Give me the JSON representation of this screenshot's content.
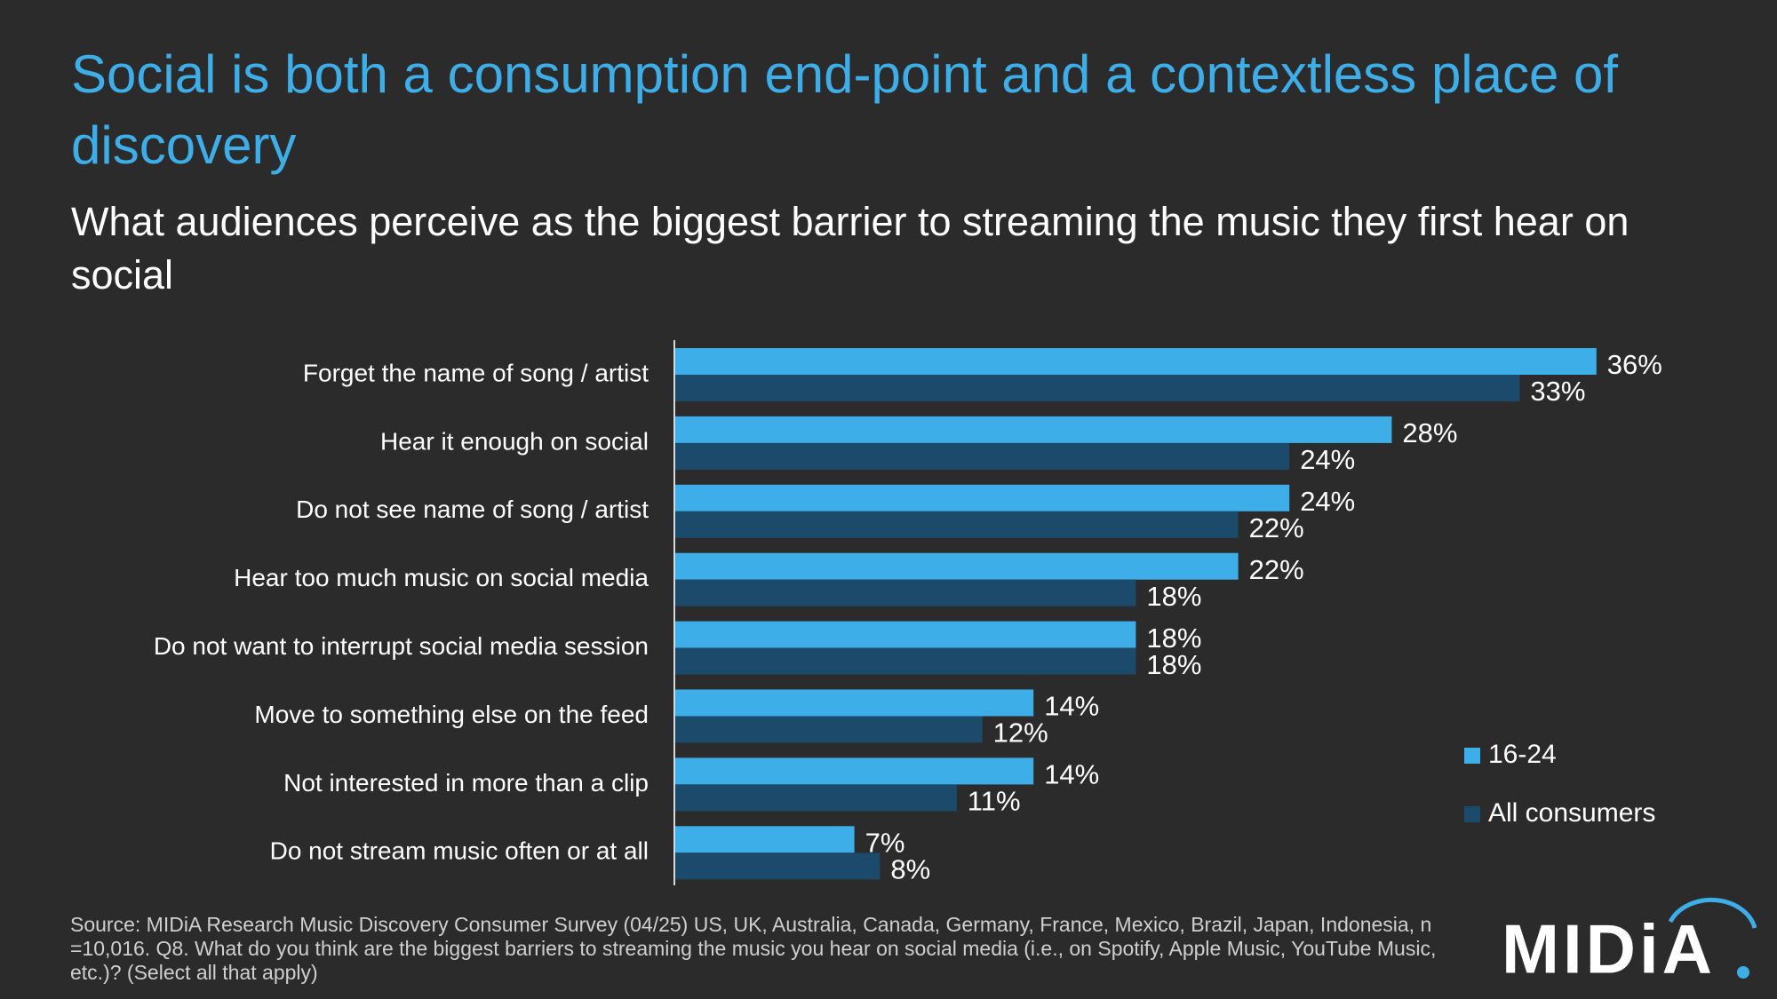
{
  "chart_data": {
    "type": "bar",
    "orientation": "horizontal",
    "title": "Social is both a consumption end-point and a contextless place of discovery",
    "subtitle": "What audiences perceive as the biggest barrier to streaming the music they first hear on social",
    "categories": [
      "Forget the name of song / artist",
      "Hear it enough on social",
      "Do not see name of song / artist",
      "Hear too much music on social media",
      "Do not want to interrupt social media session",
      "Move to something else on the feed",
      "Not interested in more than a clip",
      "Do not stream music often or at all"
    ],
    "series": [
      {
        "name": "16-24",
        "color": "#3eaee8",
        "values": [
          36,
          28,
          24,
          22,
          18,
          14,
          14,
          7
        ],
        "value_labels": [
          "36%",
          "28%",
          "24%",
          "22%",
          "18%",
          "14%",
          "14%",
          "7%"
        ]
      },
      {
        "name": "All consumers",
        "color": "#1b4a6b",
        "values": [
          33,
          24,
          22,
          18,
          18,
          12,
          11,
          8
        ],
        "value_labels": [
          "33%",
          "24%",
          "22%",
          "18%",
          "18%",
          "12%",
          "11%",
          "8%"
        ]
      }
    ],
    "legend_position": "right",
    "source": "Source: MIDiA Research Music Discovery Consumer Survey (04/25) US, UK, Australia, Canada, Germany, France, Mexico, Brazil, Japan, Indonesia, n =10,016.  Q8. What do you think are the biggest barriers to streaming the music you hear on social media (i.e., on Spotify, Apple Music, YouTube Music, etc.)? (Select all that apply)",
    "logo": "MIDiA"
  }
}
